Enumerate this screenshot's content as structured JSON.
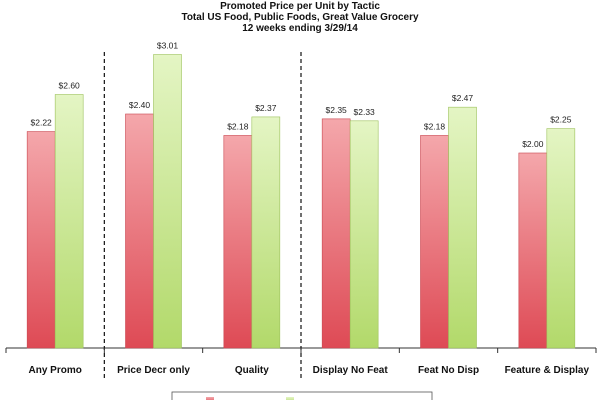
{
  "chart_data": {
    "type": "bar",
    "title": "Promoted Price per Unit by Tactic",
    "subtitle": "Total US Food, Public Foods, Great Value Grocery",
    "period": "12 weeks ending 3/29/14",
    "categories": [
      "Any Promo",
      "Price Decr only",
      "Quality",
      "Display No Feat",
      "Feat No Disp",
      "Feature & Display"
    ],
    "series": [
      {
        "values": [
          2.22,
          2.4,
          2.18,
          2.35,
          2.18,
          2.0
        ],
        "labels": [
          "$2.22",
          "$2.40",
          "$2.18",
          "$2.35",
          "$2.18",
          "$2.00"
        ],
        "color": "#e8606a"
      },
      {
        "values": [
          2.6,
          3.01,
          2.37,
          2.33,
          2.47,
          2.25
        ],
        "labels": [
          "$2.60",
          "$3.01",
          "$2.37",
          "$2.33",
          "$2.47",
          "$2.25"
        ],
        "color": "#c4e58a"
      }
    ],
    "ylim": [
      0,
      3.2
    ],
    "grid": false,
    "axis_style": "none",
    "separators_after": [
      0,
      2
    ],
    "legend": "bottom-center"
  }
}
